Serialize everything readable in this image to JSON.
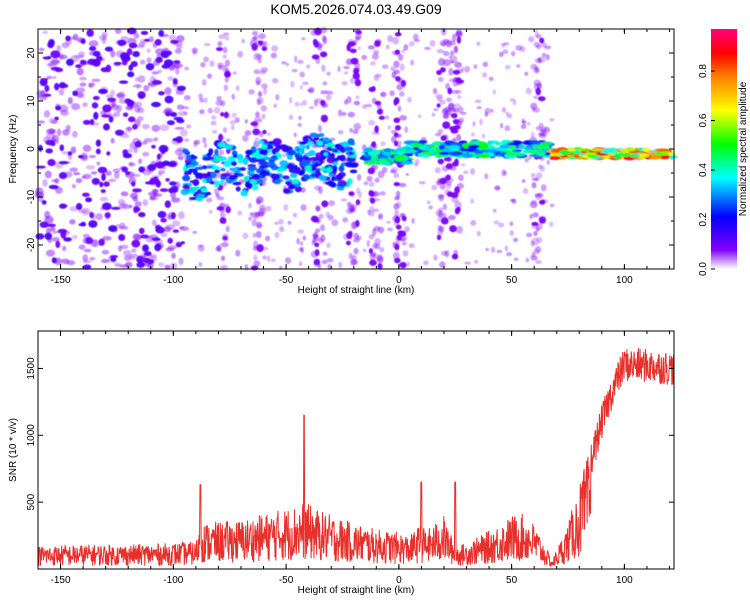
{
  "title": "KOM5.2026.074.03.49.G09",
  "chart_data": [
    {
      "type": "heatmap",
      "xlabel": "Height of straight line (km)",
      "ylabel": "Frequency (Hz)",
      "xlim": [
        -160,
        122
      ],
      "ylim": [
        -25,
        25
      ],
      "xticks": [
        -150,
        -100,
        -50,
        0,
        50,
        100
      ],
      "xtick_labels": [
        "-150",
        "-100",
        "-50",
        "0",
        "50",
        "100"
      ],
      "yticks": [
        -20,
        -10,
        0,
        10,
        20
      ],
      "ytick_labels": [
        "-20",
        "-10",
        "0",
        "10",
        "20"
      ],
      "colorbar": {
        "label": "Normalized spectral amplitude",
        "range": [
          0,
          0.97
        ],
        "ticks": [
          0.0,
          0.2,
          0.4,
          0.6,
          0.8
        ],
        "tick_labels": [
          "0.0",
          "0.2",
          "0.4",
          "0.6",
          "0.8"
        ],
        "colors": [
          "#ffffff",
          "#8000ff",
          "#0000ff",
          "#00ffff",
          "#00ff00",
          "#ffff00",
          "#ff8000",
          "#ff0000",
          "#ff0080"
        ]
      },
      "features": [
        {
          "name": "noise",
          "x_range": [
            -160,
            -95
          ],
          "freq_range": [
            -25,
            25
          ],
          "level": 0.1
        },
        {
          "name": "wandering signal",
          "x_range": [
            -95,
            -25
          ],
          "freq_center": [
            -5,
            -2
          ],
          "level": 0.35
        },
        {
          "name": "steady signal",
          "x_range": [
            -15,
            68
          ],
          "freq_center": 0,
          "level": 0.45
        },
        {
          "name": "strong signal",
          "x_range": [
            68,
            122
          ],
          "freq_center": -1,
          "level": 0.9
        }
      ]
    },
    {
      "type": "line",
      "xlabel": "Height of straight line (km)",
      "ylabel": "SNR (10 * v/v)",
      "xlim": [
        -160,
        122
      ],
      "ylim": [
        0,
        1780
      ],
      "xticks": [
        -150,
        -100,
        -50,
        0,
        50,
        100
      ],
      "xtick_labels": [
        "-150",
        "-100",
        "-50",
        "0",
        "50",
        "100"
      ],
      "yticks": [
        500,
        1000,
        1500
      ],
      "ytick_labels": [
        "500",
        "1000",
        "1500"
      ],
      "color": "#e8302b",
      "series": [
        {
          "name": "SNR envelope",
          "x": [
            -160,
            -140,
            -120,
            -100,
            -90,
            -88,
            -70,
            -55,
            -45,
            -42,
            -35,
            -20,
            -10,
            0,
            5,
            10,
            12,
            20,
            25,
            30,
            40,
            50,
            55,
            60,
            68,
            75,
            85,
            90,
            95,
            100,
            110,
            122
          ],
          "y": [
            150,
            160,
            160,
            170,
            180,
            300,
            320,
            380,
            420,
            440,
            380,
            300,
            260,
            240,
            220,
            300,
            250,
            350,
            150,
            170,
            250,
            350,
            360,
            300,
            60,
            300,
            800,
            1100,
            1350,
            1530,
            1520,
            1500
          ]
        }
      ],
      "spikes": [
        {
          "x": -88,
          "y": 630
        },
        {
          "x": -42,
          "y": 1150
        },
        {
          "x": 10,
          "y": 650
        },
        {
          "x": 25,
          "y": 650
        }
      ]
    }
  ]
}
